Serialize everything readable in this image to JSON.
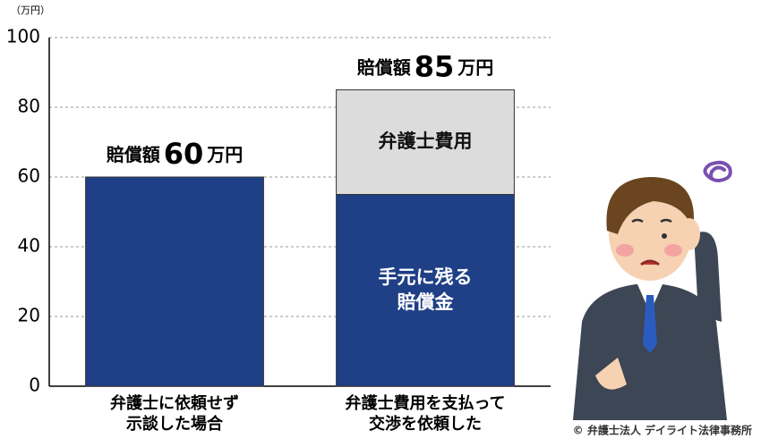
{
  "chart_data": {
    "type": "stacked-bar",
    "y_unit": "（万円）",
    "categories": [
      "弁護士に依頼せず\n示談した場合",
      "弁護士費用を支払って\n交渉を依頼した"
    ],
    "series": [
      {
        "name": "手元に残る\n賠償金",
        "color": "#1f3f86",
        "values": [
          60,
          55
        ]
      },
      {
        "name": "弁護士費用",
        "color": "#dcdcdc",
        "values": [
          null,
          30
        ]
      }
    ],
    "totals": [
      60,
      85
    ],
    "total_prefix": "賠償額",
    "total_suffix": "万円",
    "ylim": [
      0,
      100
    ],
    "yticks": [
      0,
      20,
      40,
      60,
      80,
      100
    ],
    "grid": true,
    "credit": "© 弁護士法人 デイライト法律事務所"
  }
}
